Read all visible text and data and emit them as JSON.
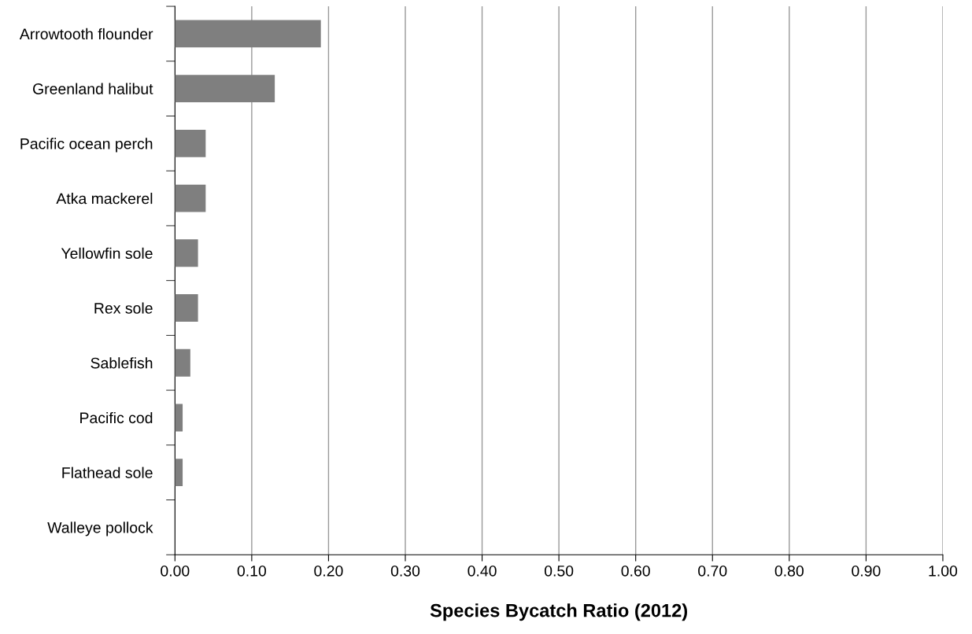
{
  "chart_data": {
    "type": "bar",
    "orientation": "horizontal",
    "xlabel": "Species Bycatch Ratio (2012)",
    "categories": [
      "Arrowtooth flounder",
      "Greenland halibut",
      "Pacific ocean perch",
      "Atka mackerel",
      "Yellowfin sole",
      "Rex sole",
      "Sablefish",
      "Pacific cod",
      "Flathead sole",
      "Walleye pollock"
    ],
    "values": [
      0.19,
      0.13,
      0.04,
      0.04,
      0.03,
      0.03,
      0.02,
      0.01,
      0.01,
      0
    ],
    "color": "#7f7f7f",
    "xlim": [
      0,
      1
    ],
    "xticks": [
      {
        "value": 0,
        "label": "0.00"
      },
      {
        "value": 0.1,
        "label": "0.10"
      },
      {
        "value": 0.2,
        "label": "0.20"
      },
      {
        "value": 0.3,
        "label": "0.30"
      },
      {
        "value": 0.4,
        "label": "0.40"
      },
      {
        "value": 0.5,
        "label": "0.50"
      },
      {
        "value": 0.6,
        "label": "0.60"
      },
      {
        "value": 0.7,
        "label": "0.70"
      },
      {
        "value": 0.8,
        "label": "0.80"
      },
      {
        "value": 0.9,
        "label": "0.90"
      },
      {
        "value": 1,
        "label": "1.00"
      }
    ],
    "grid": "x"
  }
}
